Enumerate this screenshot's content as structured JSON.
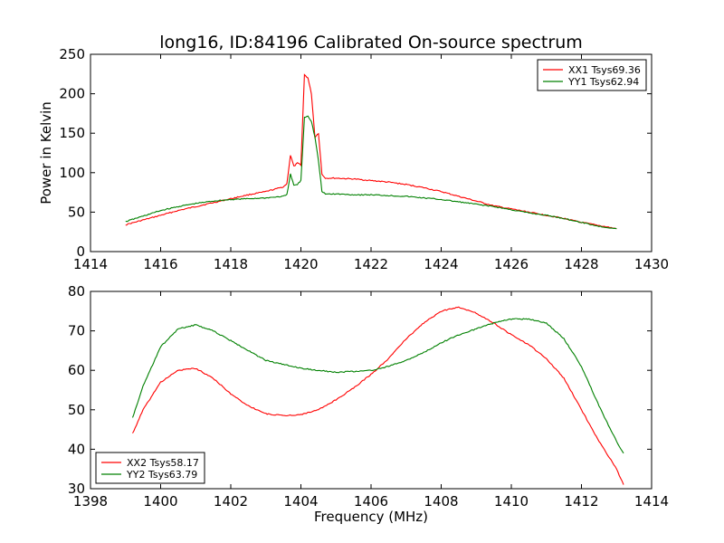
{
  "chart_data": [
    {
      "type": "line",
      "title": "long16, ID:84196 Calibrated On-source spectrum",
      "xlabel": "",
      "ylabel": "Power in Kelvin",
      "xlim": [
        1414,
        1430
      ],
      "ylim": [
        0,
        250
      ],
      "xticks": [
        "1414",
        "1416",
        "1418",
        "1420",
        "1422",
        "1424",
        "1426",
        "1428",
        "1430"
      ],
      "yticks": [
        "0",
        "50",
        "100",
        "150",
        "200",
        "250"
      ],
      "legend_position": "top-right",
      "grid": false,
      "series": [
        {
          "name": "XX1 Tsys69.36",
          "color": "#ff0000",
          "x": [
            1415.0,
            1415.5,
            1416.0,
            1416.5,
            1417.0,
            1417.5,
            1418.0,
            1418.5,
            1419.0,
            1419.5,
            1419.6,
            1419.7,
            1419.8,
            1419.9,
            1420.0,
            1420.1,
            1420.2,
            1420.3,
            1420.4,
            1420.5,
            1420.6,
            1420.7,
            1421.0,
            1421.5,
            1422.0,
            1422.5,
            1423.0,
            1423.5,
            1424.0,
            1424.5,
            1425.0,
            1425.5,
            1426.0,
            1426.5,
            1427.0,
            1427.5,
            1428.0,
            1428.5,
            1429.0
          ],
          "y": [
            34,
            40,
            46,
            52,
            57,
            62,
            67,
            72,
            76,
            82,
            86,
            122,
            108,
            112,
            110,
            224,
            220,
            200,
            145,
            150,
            98,
            93,
            93,
            92,
            90,
            88,
            85,
            81,
            76,
            70,
            64,
            58,
            54,
            50,
            46,
            42,
            37,
            33,
            29
          ]
        },
        {
          "name": "YY1 Tsys62.94",
          "color": "#008000",
          "x": [
            1415.0,
            1415.5,
            1416.0,
            1416.5,
            1417.0,
            1417.5,
            1418.0,
            1418.5,
            1419.0,
            1419.5,
            1419.6,
            1419.7,
            1419.8,
            1419.9,
            1420.0,
            1420.1,
            1420.2,
            1420.3,
            1420.4,
            1420.5,
            1420.6,
            1420.7,
            1421.0,
            1421.5,
            1422.0,
            1422.5,
            1423.0,
            1423.5,
            1424.0,
            1424.5,
            1425.0,
            1425.5,
            1426.0,
            1426.5,
            1427.0,
            1427.5,
            1428.0,
            1428.5,
            1429.0
          ],
          "y": [
            38,
            45,
            52,
            57,
            61,
            64,
            66,
            67,
            68,
            70,
            72,
            98,
            84,
            85,
            90,
            170,
            172,
            165,
            145,
            115,
            76,
            73,
            73,
            72,
            72,
            71,
            70,
            68,
            66,
            63,
            60,
            57,
            53,
            49,
            46,
            42,
            37,
            32,
            29
          ]
        }
      ]
    },
    {
      "type": "line",
      "title": "",
      "xlabel": "Frequency (MHz)",
      "ylabel": "",
      "xlim": [
        1398,
        1414
      ],
      "ylim": [
        30,
        80
      ],
      "xticks": [
        "1398",
        "1400",
        "1402",
        "1404",
        "1406",
        "1408",
        "1410",
        "1412",
        "1414"
      ],
      "yticks": [
        "30",
        "40",
        "50",
        "60",
        "70",
        "80"
      ],
      "legend_position": "bottom-left",
      "grid": false,
      "series": [
        {
          "name": "XX2 Tsys58.17",
          "color": "#ff0000",
          "x": [
            1399.2,
            1399.5,
            1400.0,
            1400.5,
            1401.0,
            1401.5,
            1402.0,
            1402.5,
            1403.0,
            1403.5,
            1404.0,
            1404.5,
            1405.0,
            1405.5,
            1406.0,
            1406.5,
            1407.0,
            1407.5,
            1408.0,
            1408.5,
            1409.0,
            1409.5,
            1410.0,
            1410.5,
            1411.0,
            1411.5,
            1412.0,
            1412.5,
            1413.0,
            1413.2
          ],
          "y": [
            44,
            50,
            57,
            60,
            60.5,
            58,
            54,
            51,
            49,
            48.5,
            48.8,
            50,
            52.5,
            55.5,
            59,
            63,
            68,
            72,
            75,
            76,
            74.5,
            72,
            69,
            66.5,
            63,
            58,
            50,
            42,
            35,
            31
          ]
        },
        {
          "name": "YY2 Tsys63.79",
          "color": "#008000",
          "x": [
            1399.2,
            1399.5,
            1400.0,
            1400.5,
            1401.0,
            1401.5,
            1402.0,
            1402.5,
            1403.0,
            1403.5,
            1404.0,
            1404.5,
            1405.0,
            1405.5,
            1406.0,
            1406.5,
            1407.0,
            1407.5,
            1408.0,
            1408.5,
            1409.0,
            1409.5,
            1410.0,
            1410.5,
            1411.0,
            1411.5,
            1412.0,
            1412.5,
            1413.0,
            1413.2
          ],
          "y": [
            48,
            56,
            66,
            70.5,
            71.5,
            70,
            67.5,
            65,
            62.5,
            61.5,
            60.5,
            60,
            59.5,
            59.7,
            60,
            61,
            62.5,
            64.5,
            67,
            69,
            70.5,
            72,
            73,
            73,
            72,
            68,
            61,
            51,
            42,
            39
          ]
        }
      ]
    }
  ]
}
